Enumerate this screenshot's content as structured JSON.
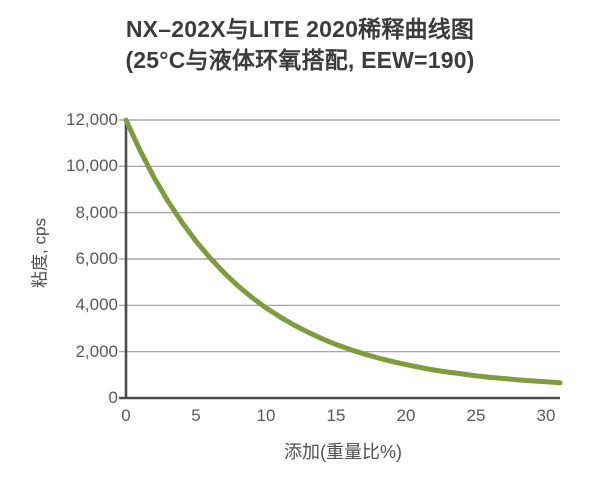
{
  "chart_data": {
    "type": "line",
    "title": "NX–202X与LITE 2020稀释曲线图",
    "subtitle": "(25°C与液体环氧搭配, EEW=190)",
    "xlabel": "添加(重量比%)",
    "ylabel": "粘度, cps",
    "xlim": [
      0,
      31
    ],
    "ylim": [
      0,
      12000
    ],
    "xtick_values": [
      0,
      5,
      10,
      15,
      20,
      25,
      30
    ],
    "xtick_labels": [
      "0",
      "5",
      "10",
      "15",
      "20",
      "25",
      "30"
    ],
    "ytick_values": [
      12000,
      10000,
      8000,
      6000,
      4000,
      2000,
      0
    ],
    "ytick_labels": [
      "12,000",
      "10,000",
      "8,000",
      "6,000",
      "4,000",
      "2,000",
      "0"
    ],
    "grid": "horizontal-only",
    "legend": "none",
    "series": [
      {
        "name": "NX-202X dilution curve",
        "x": [
          0,
          1,
          2,
          3,
          4,
          5,
          6,
          7,
          8,
          9,
          10,
          11,
          12,
          13,
          14,
          15,
          16,
          17,
          18,
          19,
          20,
          21,
          22,
          23,
          24,
          25,
          26,
          27,
          28,
          29,
          30,
          31
        ],
        "y": [
          12000,
          10690,
          9520,
          8490,
          7580,
          6770,
          6050,
          5410,
          4840,
          4340,
          3890,
          3500,
          3150,
          2840,
          2560,
          2310,
          2100,
          1900,
          1730,
          1580,
          1440,
          1320,
          1210,
          1120,
          1040,
          960,
          890,
          840,
          780,
          740,
          700,
          660
        ]
      }
    ],
    "colors": {
      "curve": "#7d9c3e",
      "grid": "#999999",
      "axis": "#4d4d4d",
      "title_text": "#3c3c3c",
      "tick_text": "#595959"
    }
  }
}
